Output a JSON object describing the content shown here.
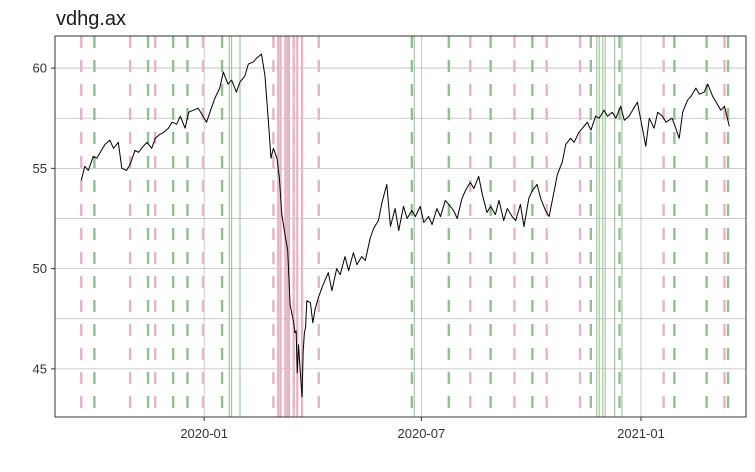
{
  "chart_data": {
    "type": "line",
    "title": "vdhg.ax",
    "xlabel": "",
    "ylabel": "",
    "x_range": [
      "2019-08-29",
      "2021-03-30"
    ],
    "ylim": [
      42.6,
      61.6
    ],
    "y_ticks": [
      45,
      50,
      55,
      60
    ],
    "x_ticks": [
      {
        "date": "2020-01-01",
        "label": "2020-01"
      },
      {
        "date": "2020-07-01",
        "label": "2020-07"
      },
      {
        "date": "2021-01-01",
        "label": "2021-01"
      }
    ],
    "grid": true,
    "legend": "none",
    "colors": {
      "line": "#000000",
      "grid": "#bdbdbd",
      "red_lines": "#e8b4c4",
      "green_lines": "#8fc08f",
      "panel_border": "#333333"
    },
    "red_dashed_dates": [
      "2019-09-20",
      "2019-10-31",
      "2019-11-21",
      "2019-12-31",
      "2020-02-28",
      "2020-03-16",
      "2020-04-06",
      "2020-08-11",
      "2020-09-17",
      "2020-10-14",
      "2020-11-11",
      "2021-01-20",
      "2021-03-12"
    ],
    "green_dashed_dates": [
      "2019-10-01",
      "2019-11-15",
      "2019-12-06",
      "2019-12-18",
      "2020-01-16",
      "2020-06-23",
      "2020-07-24",
      "2020-08-28",
      "2020-10-02",
      "2020-11-20",
      "2020-12-14",
      "2021-01-29",
      "2021-02-25",
      "2021-03-15"
    ],
    "red_solid_dates": [
      "2020-03-03",
      "2020-03-05",
      "2020-03-09",
      "2020-03-11",
      "2020-03-12",
      "2020-03-16",
      "2020-03-19",
      "2020-03-23"
    ],
    "green_solid_dates": [
      "2020-01-22",
      "2020-01-24",
      "2020-01-31",
      "2020-06-25",
      "2020-11-25",
      "2020-11-27",
      "2020-11-30",
      "2020-12-02",
      "2020-12-10",
      "2020-12-16"
    ],
    "series": [
      {
        "x": [
          "2019-09-20",
          "2019-09-23",
          "2019-09-26",
          "2019-09-30",
          "2019-10-03",
          "2019-10-07",
          "2019-10-10",
          "2019-10-14",
          "2019-10-17",
          "2019-10-21",
          "2019-10-24",
          "2019-10-28",
          "2019-10-31",
          "2019-11-04",
          "2019-11-07",
          "2019-11-11",
          "2019-11-14",
          "2019-11-18",
          "2019-11-21",
          "2019-11-25",
          "2019-11-28",
          "2019-12-02",
          "2019-12-05",
          "2019-12-09",
          "2019-12-12",
          "2019-12-16",
          "2019-12-19",
          "2019-12-23",
          "2019-12-27",
          "2019-12-31",
          "2020-01-03",
          "2020-01-07",
          "2020-01-10",
          "2020-01-14",
          "2020-01-17",
          "2020-01-21",
          "2020-01-24",
          "2020-01-28",
          "2020-01-31",
          "2020-02-04",
          "2020-02-07",
          "2020-02-11",
          "2020-02-14",
          "2020-02-18",
          "2020-02-21",
          "2020-02-24",
          "2020-02-26",
          "2020-02-28",
          "2020-03-02",
          "2020-03-04",
          "2020-03-06",
          "2020-03-09",
          "2020-03-11",
          "2020-03-13",
          "2020-03-16",
          "2020-03-17",
          "2020-03-18",
          "2020-03-19",
          "2020-03-20",
          "2020-03-23",
          "2020-03-24",
          "2020-03-25",
          "2020-03-26",
          "2020-03-27",
          "2020-03-30",
          "2020-04-01",
          "2020-04-03",
          "2020-04-06",
          "2020-04-09",
          "2020-04-14",
          "2020-04-17",
          "2020-04-21",
          "2020-04-24",
          "2020-04-28",
          "2020-05-01",
          "2020-05-05",
          "2020-05-08",
          "2020-05-12",
          "2020-05-15",
          "2020-05-19",
          "2020-05-22",
          "2020-05-26",
          "2020-05-29",
          "2020-06-02",
          "2020-06-05",
          "2020-06-09",
          "2020-06-12",
          "2020-06-16",
          "2020-06-19",
          "2020-06-23",
          "2020-06-26",
          "2020-06-30",
          "2020-07-03",
          "2020-07-07",
          "2020-07-10",
          "2020-07-14",
          "2020-07-17",
          "2020-07-21",
          "2020-07-24",
          "2020-07-28",
          "2020-07-31",
          "2020-08-04",
          "2020-08-07",
          "2020-08-11",
          "2020-08-14",
          "2020-08-18",
          "2020-08-21",
          "2020-08-25",
          "2020-08-28",
          "2020-09-01",
          "2020-09-04",
          "2020-09-08",
          "2020-09-11",
          "2020-09-15",
          "2020-09-18",
          "2020-09-22",
          "2020-09-25",
          "2020-09-29",
          "2020-10-02",
          "2020-10-06",
          "2020-10-09",
          "2020-10-13",
          "2020-10-16",
          "2020-10-20",
          "2020-10-23",
          "2020-10-27",
          "2020-10-30",
          "2020-11-03",
          "2020-11-06",
          "2020-11-10",
          "2020-11-13",
          "2020-11-17",
          "2020-11-20",
          "2020-11-24",
          "2020-11-27",
          "2020-12-01",
          "2020-12-04",
          "2020-12-08",
          "2020-12-11",
          "2020-12-15",
          "2020-12-18",
          "2020-12-22",
          "2020-12-29",
          "2021-01-05",
          "2021-01-08",
          "2021-01-12",
          "2021-01-15",
          "2021-01-19",
          "2021-01-22",
          "2021-01-27",
          "2021-01-29",
          "2021-02-02",
          "2021-02-05",
          "2021-02-09",
          "2021-02-12",
          "2021-02-16",
          "2021-02-19",
          "2021-02-23",
          "2021-02-26",
          "2021-03-02",
          "2021-03-05",
          "2021-03-09",
          "2021-03-12",
          "2021-03-16"
        ],
        "values": [
          54.4,
          55.1,
          54.9,
          55.6,
          55.5,
          55.9,
          56.2,
          56.4,
          56.0,
          56.3,
          55.0,
          54.9,
          55.2,
          55.9,
          55.8,
          56.1,
          56.3,
          56.0,
          56.5,
          56.7,
          56.8,
          57.0,
          57.3,
          57.2,
          57.6,
          57.0,
          57.8,
          57.9,
          58.0,
          57.6,
          57.3,
          58.0,
          58.5,
          59.0,
          59.8,
          59.2,
          59.4,
          58.8,
          59.3,
          59.6,
          60.2,
          60.3,
          60.5,
          60.7,
          59.6,
          57.2,
          55.5,
          56.0,
          55.5,
          54.5,
          52.7,
          51.6,
          50.9,
          48.2,
          47.3,
          46.8,
          46.9,
          44.8,
          46.2,
          43.6,
          45.9,
          46.8,
          47.1,
          48.4,
          48.3,
          47.3,
          48.0,
          48.6,
          49.1,
          49.8,
          48.9,
          50.0,
          49.7,
          50.6,
          49.9,
          50.8,
          50.2,
          50.6,
          50.4,
          51.5,
          52.0,
          52.4,
          53.3,
          54.2,
          52.1,
          53.0,
          51.9,
          53.1,
          52.5,
          52.9,
          52.6,
          53.1,
          52.3,
          52.6,
          52.2,
          53.0,
          52.6,
          53.4,
          53.2,
          52.9,
          52.5,
          53.5,
          53.9,
          54.3,
          54.0,
          54.6,
          53.7,
          52.8,
          53.1,
          52.7,
          53.4,
          52.4,
          53.0,
          52.6,
          52.4,
          53.2,
          52.1,
          53.5,
          53.9,
          54.2,
          53.5,
          52.9,
          52.6,
          53.8,
          54.7,
          55.3,
          56.2,
          56.5,
          56.3,
          56.8,
          57.0,
          57.3,
          56.9,
          57.6,
          57.5,
          57.9,
          57.6,
          57.8,
          57.5,
          58.1,
          57.4,
          57.6,
          58.3,
          56.1,
          57.5,
          57.0,
          57.8,
          57.6,
          57.3,
          57.5,
          57.2,
          56.5,
          57.8,
          58.4,
          58.6,
          59.0,
          58.7,
          58.8,
          59.2,
          58.6,
          58.3,
          57.9,
          58.1,
          57.1
        ]
      }
    ]
  }
}
